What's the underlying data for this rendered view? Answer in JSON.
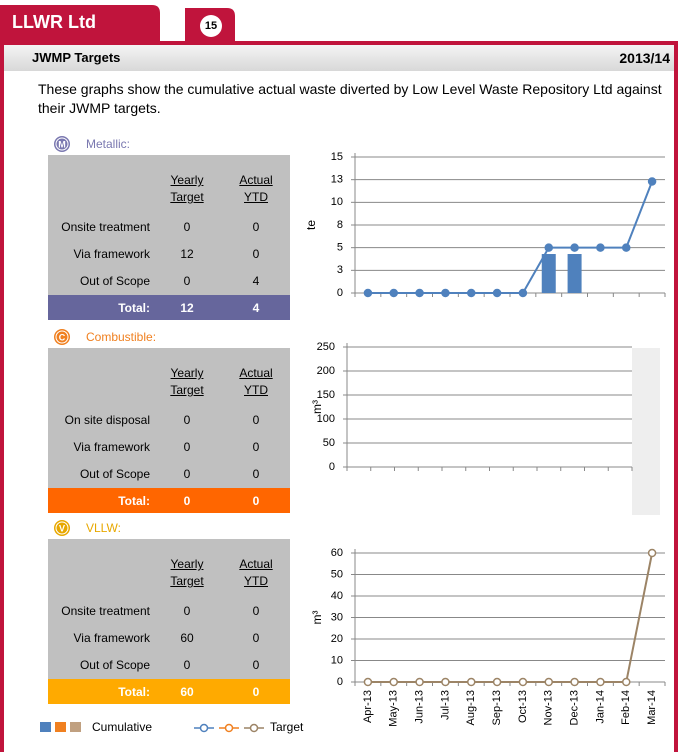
{
  "header": {
    "title": "LLWR Ltd",
    "badge": "15"
  },
  "section": {
    "title": "JWMP Targets",
    "year": "2013/14"
  },
  "intro": "These graphs show the cumulative actual waste diverted by Low Level Waste Repository Ltd against their JWMP targets.",
  "blocks": [
    {
      "icon": "M",
      "name": "Metallic:",
      "color": "#7a78b0",
      "total_color": "#66669c",
      "table": {
        "headers": [
          "Yearly Target",
          "Actual YTD"
        ],
        "rows": [
          {
            "label": "Onsite treatment",
            "target": "0",
            "actual": "0"
          },
          {
            "label": "Via framework",
            "target": "12",
            "actual": "0"
          },
          {
            "label": "Out of Scope",
            "target": "0",
            "actual": "4"
          }
        ],
        "total": {
          "label": "Total:",
          "target": "12",
          "actual": "4"
        }
      },
      "chart": {
        "type": "bar-line",
        "ylabel": "te",
        "ylim": [
          0,
          15
        ],
        "yticks": [
          0,
          {
            "value": 2.5,
            "label": "3"
          },
          5,
          {
            "value": 7.5,
            "label": "8"
          },
          10,
          {
            "value": 12.5,
            "label": "13"
          },
          15
        ],
        "bars": [
          null,
          null,
          null,
          null,
          null,
          null,
          null,
          4.3,
          4.3,
          null,
          null,
          null
        ],
        "bar_color": "#4f81bd",
        "line": [
          0,
          0,
          0,
          0,
          0,
          0,
          0,
          5,
          5,
          5,
          5,
          12.3
        ],
        "line_color": "#4f81bd",
        "marker_fill": "#4f81bd"
      }
    },
    {
      "icon": "C",
      "name": "Combustible:",
      "color": "#f08020",
      "total_color": "#ff6600",
      "table": {
        "headers": [
          "Yearly Target",
          "Actual YTD"
        ],
        "rows": [
          {
            "label": "On site disposal",
            "target": "0",
            "actual": "0"
          },
          {
            "label": "Via framework",
            "target": "0",
            "actual": "0"
          },
          {
            "label": "Out of Scope",
            "target": "0",
            "actual": "0"
          }
        ],
        "total": {
          "label": "Total:",
          "target": "0",
          "actual": "0"
        }
      },
      "chart": {
        "type": "empty",
        "ylabel": "m³",
        "ylim": [
          0,
          250
        ],
        "yticks": [
          0,
          50,
          100,
          150,
          200,
          250
        ]
      }
    },
    {
      "icon": "V",
      "name": "VLLW:",
      "color": "#e8a800",
      "total_color": "#ffaa00",
      "table": {
        "headers": [
          "Yearly Target",
          "Actual YTD"
        ],
        "rows": [
          {
            "label": "Onsite treatment",
            "target": "0",
            "actual": "0"
          },
          {
            "label": "Via framework",
            "target": "60",
            "actual": "0"
          },
          {
            "label": "Out of Scope",
            "target": "0",
            "actual": "0"
          }
        ],
        "total": {
          "label": "Total:",
          "target": "60",
          "actual": "0"
        }
      },
      "chart": {
        "type": "line",
        "ylabel": "m³",
        "ylim": [
          0,
          60
        ],
        "yticks": [
          0,
          10,
          20,
          30,
          40,
          50,
          60
        ],
        "categories": [
          "Apr-13",
          "May-13",
          "Jun-13",
          "Jul-13",
          "Aug-13",
          "Sep-13",
          "Oct-13",
          "Nov-13",
          "Dec-13",
          "Jan-14",
          "Feb-14",
          "Mar-14"
        ],
        "line": [
          0,
          0,
          0,
          0,
          0,
          0,
          0,
          0,
          0,
          0,
          0,
          60
        ],
        "line_color": "#9c8466",
        "marker_fill": "#ffffff"
      }
    }
  ],
  "legend": {
    "cumulative": "Cumulative",
    "target": "Target"
  }
}
